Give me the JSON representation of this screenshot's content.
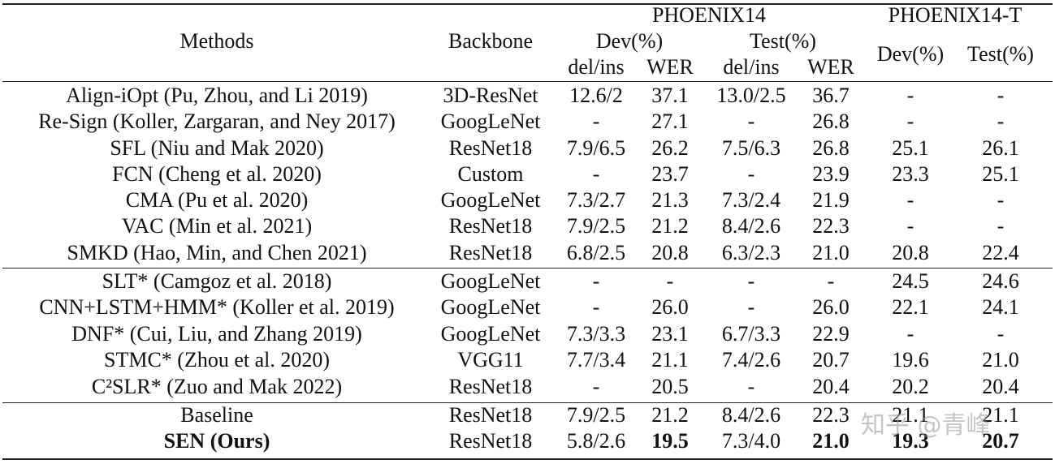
{
  "table": {
    "header": {
      "methods": "Methods",
      "backbone": "Backbone",
      "phoenix14": "PHOENIX14",
      "phoenix14t": "PHOENIX14-T",
      "dev": "Dev(%)",
      "test": "Test(%)",
      "delins": "del/ins",
      "wer": "WER",
      "dev_t": "Dev(%)",
      "test_t": "Test(%)"
    },
    "rows": [
      {
        "method": "Align-iOpt (Pu, Zhou, and Li 2019)",
        "backbone": "3D-ResNet",
        "dev_di": "12.6/2",
        "dev_wer": "37.1",
        "test_di": "13.0/2.5",
        "test_wer": "36.7",
        "t_dev": "-",
        "t_test": "-"
      },
      {
        "method": "Re-Sign (Koller, Zargaran, and Ney 2017)",
        "backbone": "GoogLeNet",
        "dev_di": "-",
        "dev_wer": "27.1",
        "test_di": "-",
        "test_wer": "26.8",
        "t_dev": "-",
        "t_test": "-"
      },
      {
        "method": "SFL (Niu and Mak 2020)",
        "backbone": "ResNet18",
        "dev_di": "7.9/6.5",
        "dev_wer": "26.2",
        "test_di": "7.5/6.3",
        "test_wer": "26.8",
        "t_dev": "25.1",
        "t_test": "26.1"
      },
      {
        "method": "FCN (Cheng et al. 2020)",
        "backbone": "Custom",
        "dev_di": "-",
        "dev_wer": "23.7",
        "test_di": "-",
        "test_wer": "23.9",
        "t_dev": "23.3",
        "t_test": "25.1"
      },
      {
        "method": "CMA (Pu et al. 2020)",
        "backbone": "GoogLeNet",
        "dev_di": "7.3/2.7",
        "dev_wer": "21.3",
        "test_di": "7.3/2.4",
        "test_wer": "21.9",
        "t_dev": "-",
        "t_test": "-"
      },
      {
        "method": "VAC (Min et al. 2021)",
        "backbone": "ResNet18",
        "dev_di": "7.9/2.5",
        "dev_wer": "21.2",
        "test_di": "8.4/2.6",
        "test_wer": "22.3",
        "t_dev": "-",
        "t_test": "-"
      },
      {
        "method": "SMKD (Hao, Min, and Chen 2021)",
        "backbone": "ResNet18",
        "dev_di": "6.8/2.5",
        "dev_wer": "20.8",
        "test_di": "6.3/2.3",
        "test_wer": "21.0",
        "t_dev": "20.8",
        "t_test": "22.4"
      },
      {
        "method": "SLT* (Camgoz et al. 2018)",
        "backbone": "GoogLeNet",
        "dev_di": "-",
        "dev_wer": "-",
        "test_di": "-",
        "test_wer": "-",
        "t_dev": "24.5",
        "t_test": "24.6"
      },
      {
        "method": "CNN+LSTM+HMM* (Koller et al. 2019)",
        "backbone": "GoogLeNet",
        "dev_di": "-",
        "dev_wer": "26.0",
        "test_di": "-",
        "test_wer": "26.0",
        "t_dev": "22.1",
        "t_test": "24.1"
      },
      {
        "method": "DNF* (Cui, Liu, and Zhang 2019)",
        "backbone": "GoogLeNet",
        "dev_di": "7.3/3.3",
        "dev_wer": "23.1",
        "test_di": "6.7/3.3",
        "test_wer": "22.9",
        "t_dev": "-",
        "t_test": "-"
      },
      {
        "method": "STMC* (Zhou et al. 2020)",
        "backbone": "VGG11",
        "dev_di": "7.7/3.4",
        "dev_wer": "21.1",
        "test_di": "7.4/2.6",
        "test_wer": "20.7",
        "t_dev": "19.6",
        "t_test": "21.0"
      },
      {
        "method": "C²SLR* (Zuo and Mak 2022)",
        "backbone": "ResNet18",
        "dev_di": "-",
        "dev_wer": "20.5",
        "test_di": "-",
        "test_wer": "20.4",
        "t_dev": "20.2",
        "t_test": "20.4"
      },
      {
        "method": "Baseline",
        "backbone": "ResNet18",
        "dev_di": "7.9/2.5",
        "dev_wer": "21.2",
        "test_di": "8.4/2.6",
        "test_wer": "22.3",
        "t_dev": "21.1",
        "t_test": "21.1"
      },
      {
        "method": "SEN (Ours)",
        "backbone": "ResNet18",
        "dev_di": "5.8/2.6",
        "dev_wer": "19.5",
        "test_di": "7.3/4.0",
        "test_wer": "21.0",
        "t_dev": "19.3",
        "t_test": "20.7"
      }
    ]
  },
  "watermark": "知乎 @青峰"
}
